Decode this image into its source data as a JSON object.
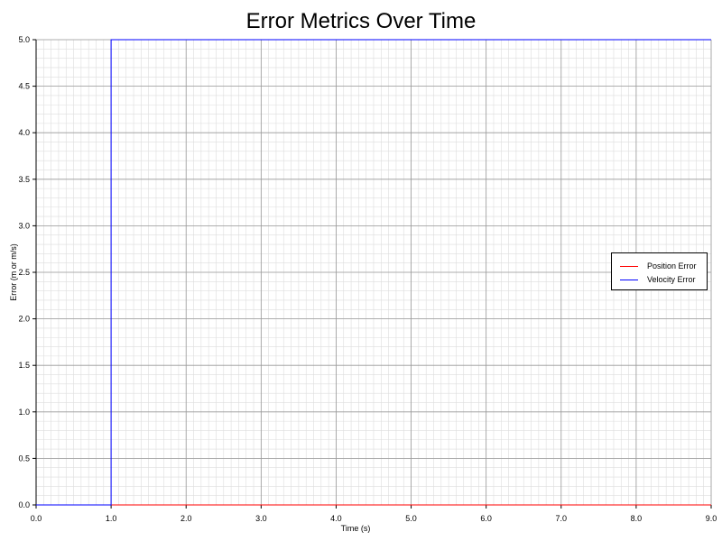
{
  "chart_data": {
    "type": "line",
    "title": "Error Metrics Over Time",
    "xlabel": "Time (s)",
    "ylabel": "Error (m or m/s)",
    "xlim": [
      0,
      9
    ],
    "ylim": [
      0,
      5
    ],
    "x_ticks": [
      "0.0",
      "1.0",
      "2.0",
      "3.0",
      "4.0",
      "5.0",
      "6.0",
      "7.0",
      "8.0",
      "9.0"
    ],
    "y_ticks": [
      "0.0",
      "0.5",
      "1.0",
      "1.5",
      "2.0",
      "2.5",
      "3.0",
      "3.5",
      "4.0",
      "4.5",
      "5.0"
    ],
    "grid": true,
    "legend_position": "right",
    "series": [
      {
        "name": "Position Error",
        "color": "#ff0000",
        "x": [
          0,
          9
        ],
        "y": [
          0,
          0
        ]
      },
      {
        "name": "Velocity Error",
        "color": "#0000ff",
        "x": [
          0,
          1,
          1,
          9
        ],
        "y": [
          0,
          0,
          5,
          5
        ]
      }
    ]
  }
}
